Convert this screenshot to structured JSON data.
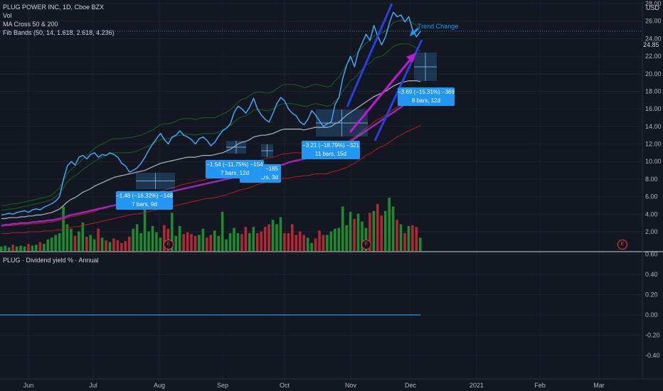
{
  "header": {
    "symbol_line": "PLUG POWER INC, 1D, Cboe BZX",
    "indicators": [
      "Vol",
      "MA Cross 50 & 200",
      "Fib Bands (50, 14, 1.618, 2.618, 4.236)"
    ],
    "sub_pane_title": "PLUG · Dividend yield % · Annual",
    "currency": "USD"
  },
  "chart_data": {
    "type": "line",
    "x_axis_labels": [
      "Jun",
      "Jul",
      "Aug",
      "Sep",
      "Oct",
      "Nov",
      "Dec",
      "2021",
      "Feb",
      "Mar"
    ],
    "price_axis": {
      "ticks": [
        "2.00",
        "4.00",
        "6.00",
        "8.00",
        "10.00",
        "12.00",
        "14.00",
        "16.00",
        "18.00",
        "20.00",
        "22.00",
        "24.00",
        "26.00",
        "28.00"
      ],
      "top_label": "USD",
      "last_price": "24.85"
    },
    "yield_axis": {
      "ticks": [
        "0.60",
        "0.40",
        "0.20",
        "0.00",
        "-0.20",
        "-0.40"
      ],
      "value": 0.0
    },
    "price_series": [
      3.9,
      4.0,
      4.1,
      4.0,
      4.2,
      4.3,
      4.4,
      4.2,
      4.5,
      4.6,
      4.5,
      4.8,
      5.0,
      5.2,
      5.5,
      6.0,
      8.0,
      9.5,
      10.0,
      9.6,
      10.5,
      10.7,
      10.3,
      10.8,
      11.0,
      10.5,
      10.8,
      10.7,
      11.0,
      10.8,
      10.5,
      9.8,
      9.5,
      8.8,
      9.0,
      9.3,
      9.8,
      10.5,
      11.3,
      12.0,
      12.6,
      13.2,
      12.5,
      12.0,
      12.8,
      13.0,
      13.5,
      13.0,
      12.8,
      12.5,
      12.0,
      12.6,
      12.8,
      12.4,
      11.8,
      12.2,
      12.9,
      13.5,
      13.8,
      14.3,
      15.6,
      16.3,
      16.0,
      15.5,
      16.2,
      17.2,
      16.0,
      15.3,
      14.8,
      14.5,
      15.5,
      16.6,
      17.3,
      16.9,
      16.0,
      15.5,
      15.2,
      14.5,
      14.2,
      14.8,
      15.8,
      15.3,
      14.6,
      14.0,
      14.3,
      14.5,
      16.5,
      17.3,
      19.5,
      21.0,
      22.0,
      20.8,
      22.5,
      23.5,
      24.5,
      23.8,
      25.5,
      24.3,
      23.3,
      24.2,
      25.8,
      27.0,
      26.5,
      26.7,
      25.9,
      26.5,
      25.0,
      24.2,
      24.85
    ],
    "volume": [
      0.5,
      0.6,
      0.4,
      0.7,
      0.5,
      0.6,
      0.5,
      0.8,
      0.6,
      0.7,
      1.0,
      0.8,
      1.3,
      1.5,
      1.8,
      2.0,
      5.0,
      3.0,
      2.5,
      1.7,
      2.2,
      3.2,
      1.6,
      1.8,
      1.3,
      2.5,
      1.5,
      1.2,
      1.0,
      1.4,
      1.2,
      0.9,
      1.1,
      1.6,
      2.5,
      3.0,
      2.0,
      5.0,
      2.2,
      2.8,
      2.1,
      1.5,
      2.9,
      2.5,
      4.3,
      1.7,
      2.8,
      1.9,
      2.1,
      1.9,
      1.7,
      1.8,
      2.5,
      1.5,
      1.8,
      2.3,
      1.7,
      4.4,
      1.3,
      2.0,
      2.6,
      2.0,
      1.9,
      2.7,
      2.0,
      2.7,
      2.0,
      2.2,
      2.7,
      3.0,
      3.5,
      3.0,
      3.8,
      2.0,
      2.0,
      3.0,
      1.8,
      2.2,
      1.8,
      1.5,
      0.9,
      1.4,
      2.3,
      1.8,
      1.8,
      2.2,
      2.5,
      2.6,
      5.0,
      2.9,
      4.4,
      3.6,
      4.2,
      3.3,
      2.6,
      4.3,
      4.5,
      5.3,
      4.0,
      4.5,
      6.0,
      5.0,
      3.5,
      3.0,
      2.0,
      2.8,
      2.9,
      2.7,
      1.5
    ],
    "fib_upper_outer": [
      5.0,
      5.0,
      5.1,
      5.2,
      5.2,
      5.3,
      5.4,
      5.5,
      5.6,
      5.7,
      5.8,
      5.9,
      6.0,
      6.2,
      6.6,
      7.0,
      7.8,
      8.6,
      9.1,
      9.5,
      9.8,
      10.3,
      10.7,
      11.1,
      11.5,
      11.8,
      12.0,
      12.2,
      12.5,
      12.6,
      12.6,
      12.6,
      12.7,
      12.7,
      12.8,
      12.9,
      13.0,
      13.2,
      13.4,
      13.6,
      13.9,
      14.2,
      14.3,
      14.3,
      14.4,
      14.6,
      14.8,
      14.9,
      14.9,
      14.9,
      14.8,
      14.9,
      15.0,
      15.0,
      15.0,
      15.0,
      15.2,
      15.4,
      15.6,
      15.9,
      16.3,
      16.8,
      17.1,
      17.2,
      17.5,
      17.8,
      17.9,
      17.9,
      17.8,
      17.8,
      18.0,
      18.3,
      18.6,
      18.8,
      18.8,
      18.8,
      18.7,
      18.6,
      18.4,
      18.5,
      18.7,
      18.8,
      18.7,
      18.6,
      18.5,
      18.6,
      19.2,
      19.6,
      20.3,
      21.0,
      21.7,
      22.0,
      22.5,
      23.0,
      23.5,
      23.8,
      24.3,
      24.5,
      24.6,
      24.9,
      25.3,
      25.8,
      26.0,
      26.1,
      26.0,
      26.0,
      25.8,
      25.5,
      25.0
    ],
    "fib_upper": [
      4.5,
      4.5,
      4.6,
      4.6,
      4.7,
      4.8,
      4.9,
      5.0,
      5.1,
      5.2,
      5.3,
      5.4,
      5.5,
      5.7,
      6.0,
      6.4,
      7.0,
      7.7,
      8.1,
      8.4,
      8.7,
      9.1,
      9.4,
      9.7,
      10.0,
      10.3,
      10.5,
      10.7,
      10.9,
      11.0,
      11.0,
      11.0,
      11.0,
      11.0,
      11.1,
      11.2,
      11.4,
      11.6,
      11.8,
      12.0,
      12.3,
      12.5,
      12.6,
      12.6,
      12.7,
      12.9,
      13.0,
      13.1,
      13.1,
      13.1,
      13.0,
      13.1,
      13.2,
      13.2,
      13.2,
      13.2,
      13.4,
      13.6,
      13.8,
      14.1,
      14.5,
      14.9,
      15.1,
      15.2,
      15.5,
      15.8,
      15.9,
      15.9,
      15.8,
      15.8,
      16.0,
      16.3,
      16.5,
      16.6,
      16.6,
      16.6,
      16.5,
      16.4,
      16.3,
      16.3,
      16.5,
      16.6,
      16.5,
      16.4,
      16.3,
      16.4,
      16.9,
      17.3,
      18.0,
      18.6,
      19.2,
      19.5,
      20.0,
      20.5,
      21.0,
      21.2,
      21.7,
      21.9,
      22.0,
      22.3,
      22.7,
      23.1,
      23.3,
      23.4,
      23.4,
      23.4,
      23.2,
      22.9,
      22.6
    ],
    "ma50": [
      3.5,
      3.5,
      3.6,
      3.6,
      3.6,
      3.7,
      3.7,
      3.8,
      3.8,
      3.9,
      3.9,
      4.0,
      4.1,
      4.2,
      4.4,
      4.6,
      5.0,
      5.4,
      5.7,
      5.9,
      6.2,
      6.5,
      6.7,
      6.9,
      7.2,
      7.4,
      7.6,
      7.8,
      8.0,
      8.2,
      8.3,
      8.4,
      8.5,
      8.6,
      8.7,
      8.8,
      8.9,
      9.0,
      9.2,
      9.4,
      9.6,
      9.8,
      9.9,
      10.0,
      10.1,
      10.2,
      10.3,
      10.4,
      10.5,
      10.5,
      10.5,
      10.6,
      10.7,
      10.7,
      10.7,
      10.8,
      10.9,
      11.0,
      11.2,
      11.4,
      11.7,
      12.0,
      12.2,
      12.3,
      12.5,
      12.8,
      12.9,
      13.0,
      13.0,
      13.1,
      13.2,
      13.4,
      13.6,
      13.7,
      13.7,
      13.7,
      13.7,
      13.7,
      13.6,
      13.7,
      13.8,
      13.9,
      13.9,
      13.9,
      13.9,
      14.0,
      14.3,
      14.5,
      14.9,
      15.3,
      15.6,
      15.9,
      16.2,
      16.5,
      16.8,
      17.1,
      17.4,
      17.6,
      17.8,
      18.0,
      18.3,
      18.6,
      18.8,
      19.0,
      19.1,
      19.2,
      19.2,
      19.2,
      19.1
    ],
    "ma200": [
      2.7,
      2.8,
      2.8,
      2.9,
      2.9,
      3.0,
      3.0,
      3.0,
      3.1,
      3.1,
      3.2,
      3.2,
      3.3,
      3.3,
      3.4,
      3.5,
      3.6,
      3.8,
      3.9,
      4.0,
      4.1,
      4.2,
      4.3,
      4.4,
      4.5,
      4.6,
      4.7,
      4.8,
      4.9,
      5.0,
      5.1,
      5.2,
      5.3,
      5.4,
      5.5,
      5.6,
      5.7,
      5.8,
      5.9,
      6.0,
      6.1,
      6.2,
      6.4,
      6.5,
      6.6,
      6.7,
      6.8,
      6.9,
      7.0,
      7.1,
      7.2,
      7.3,
      7.4,
      7.5,
      7.6,
      7.7,
      7.8,
      7.9,
      8.0,
      8.1,
      8.2,
      8.4,
      8.5,
      8.6,
      8.8,
      8.9,
      9.0,
      9.1,
      9.2,
      9.3,
      9.4,
      9.5,
      9.6,
      9.7,
      9.9,
      10.0,
      10.1,
      10.2,
      10.3,
      10.4,
      10.5,
      10.6,
      10.7,
      10.8,
      10.9,
      11.0,
      11.2,
      11.4,
      11.7,
      12.0,
      12.3,
      12.6,
      12.9,
      13.2,
      13.5,
      13.8,
      14.1,
      14.4,
      14.7,
      15.0,
      15.3,
      15.6,
      15.9,
      16.2,
      16.5,
      16.8,
      17.0,
      17.3,
      17.5
    ],
    "fib_lower": [
      2.6,
      2.7,
      2.7,
      2.7,
      2.8,
      2.8,
      2.8,
      2.9,
      2.9,
      2.9,
      3.0,
      3.0,
      3.1,
      3.1,
      3.2,
      3.3,
      3.4,
      3.6,
      3.7,
      3.8,
      3.9,
      4.0,
      4.1,
      4.2,
      4.3,
      4.5,
      4.6,
      4.7,
      4.9,
      5.0,
      5.2,
      5.3,
      5.5,
      5.6,
      5.7,
      5.8,
      5.9,
      6.0,
      6.2,
      6.3,
      6.4,
      6.6,
      6.7,
      6.9,
      7.0,
      7.1,
      7.3,
      7.4,
      7.5,
      7.6,
      7.7,
      7.8,
      7.9,
      8.0,
      8.1,
      8.2,
      8.3,
      8.4,
      8.6,
      8.8,
      9.0,
      9.2,
      9.3,
      9.4,
      9.5,
      9.8,
      10.0,
      10.2,
      10.3,
      10.4,
      10.5,
      10.6,
      10.8,
      10.9,
      10.9,
      11.0,
      11.0,
      11.0,
      11.0,
      11.0,
      11.1,
      11.2,
      11.2,
      11.2,
      11.2,
      11.4,
      11.6,
      11.8,
      12.0,
      12.2,
      12.5,
      12.8,
      13.1,
      13.5,
      13.8,
      14.1,
      14.5,
      14.8,
      15.0,
      15.3,
      15.6,
      15.9,
      16.2,
      16.5,
      16.8,
      17.0,
      17.2,
      17.4,
      17.6
    ],
    "fib_lower_outer": [
      1.8,
      1.8,
      1.8,
      1.9,
      1.9,
      1.9,
      1.9,
      2.0,
      2.0,
      2.0,
      2.0,
      2.1,
      2.1,
      2.1,
      2.2,
      2.2,
      2.3,
      2.4,
      2.5,
      2.6,
      2.6,
      2.7,
      2.8,
      2.9,
      3.0,
      3.1,
      3.2,
      3.3,
      3.4,
      3.5,
      3.6,
      3.7,
      3.8,
      3.9,
      4.0,
      4.0,
      4.1,
      4.2,
      4.3,
      4.4,
      4.5,
      4.6,
      4.7,
      4.8,
      4.9,
      5.0,
      5.1,
      5.2,
      5.3,
      5.4,
      5.5,
      5.6,
      5.7,
      5.8,
      5.8,
      5.9,
      6.0,
      6.1,
      6.2,
      6.4,
      6.5,
      6.7,
      6.8,
      6.9,
      7.0,
      7.2,
      7.4,
      7.5,
      7.6,
      7.7,
      7.8,
      7.9,
      8.0,
      8.1,
      8.1,
      8.2,
      8.3,
      8.3,
      8.4,
      8.4,
      8.5,
      8.6,
      8.6,
      8.6,
      8.6,
      8.8,
      8.9,
      9.0,
      9.2,
      9.3,
      9.6,
      9.8,
      10.1,
      10.4,
      10.7,
      10.9,
      11.2,
      11.5,
      11.7,
      11.9,
      12.2,
      12.5,
      12.8,
      13.0,
      13.3,
      13.5,
      13.7,
      13.9,
      14.1
    ],
    "annotations": [
      {
        "line1": "−1.48 (−16.32%) −148",
        "line2": "7 bars, 9d"
      },
      {
        "line1": "−1.54 (−11.75%) −154",
        "line2": "7 bars, 12d"
      },
      {
        "line1": "14.31%) −185",
        "line2": "ars, 3d"
      },
      {
        "line1": "−3.21 (−18.79%) −321",
        "line2": "11 bars, 15d"
      },
      {
        "line1": "−3.69 (−15.31%) −369",
        "line2": "8 bars, 12d"
      }
    ],
    "trend_label": "Trend Change",
    "earnings_marker": "E",
    "colors": {
      "background": "#131722",
      "price_line": "#42a5f5",
      "vol_up": "#26a69a",
      "vol_green": "#1b8c2f",
      "vol_red": "#b22833",
      "ma50": "#b2b5be",
      "ma200": "#9c27b0",
      "fib_red": "#b71c1c",
      "fib_green": "#1b5e20",
      "annotation": "#2196f3",
      "trendline": "#2a3fe0",
      "magenta": "#c218d6",
      "yield_line": "#2196f3"
    }
  }
}
